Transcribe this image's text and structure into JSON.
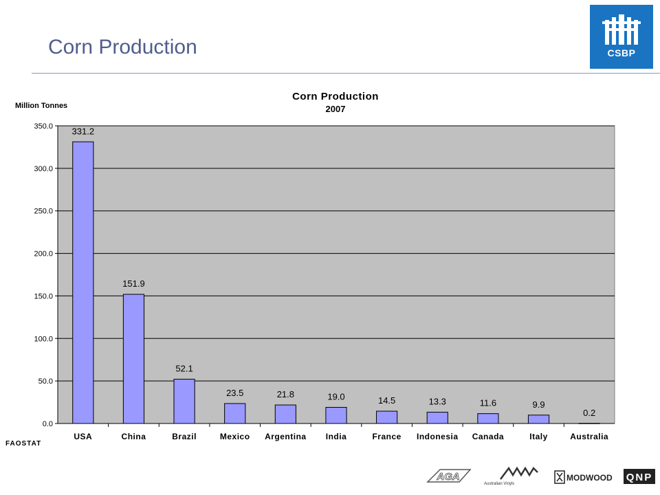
{
  "slide": {
    "title": "Corn Production",
    "logo_text": "CSBP",
    "source": "FAOSTAT",
    "footer_logos": [
      "AGA",
      "Australian Vinyls",
      "MODWOOD",
      "QNP"
    ]
  },
  "chart_data": {
    "type": "bar",
    "title": "Corn Production",
    "subtitle": "2007",
    "ylabel": "Million Tonnes",
    "xlabel": "",
    "categories": [
      "USA",
      "China",
      "Brazil",
      "Mexico",
      "Argentina",
      "India",
      "France",
      "Indonesia",
      "Canada",
      "Italy",
      "Australia"
    ],
    "values": [
      331.2,
      151.9,
      52.1,
      23.5,
      21.8,
      19.0,
      14.5,
      13.3,
      11.6,
      9.9,
      0.2
    ],
    "value_labels": [
      "331.2",
      "151.9",
      "52.1",
      "23.5",
      "21.8",
      "19.0",
      "14.5",
      "13.3",
      "11.6",
      "9.9",
      "0.2"
    ],
    "yticks": [
      "0.0",
      "50.0",
      "100.0",
      "150.0",
      "200.0",
      "250.0",
      "300.0",
      "350.0"
    ],
    "ylim": [
      0,
      350
    ],
    "grid": true,
    "legend": "none",
    "bar_color": "#9999ff",
    "plot_background": "#c0c0c0"
  }
}
